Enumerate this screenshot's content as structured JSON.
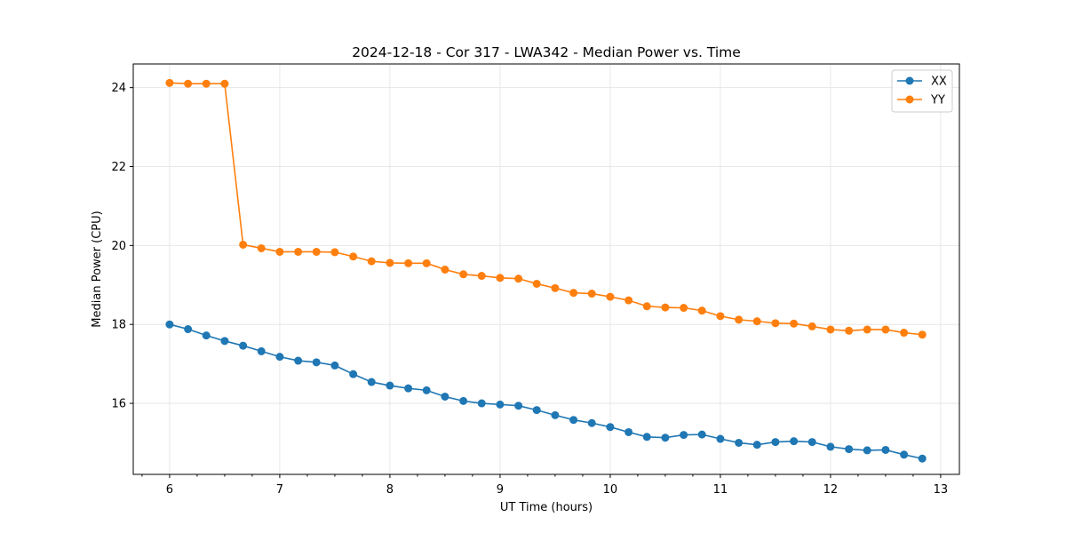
{
  "chart_data": {
    "type": "line",
    "title": "2024-12-18 - Cor 317 - LWA342 - Median Power vs. Time",
    "xlabel": "UT Time (hours)",
    "ylabel": "Median Power (CPU)",
    "xlim": [
      5.67,
      13.17
    ],
    "ylim": [
      14.2,
      24.6
    ],
    "xticks": [
      6,
      7,
      8,
      9,
      10,
      11,
      12,
      13
    ],
    "yticks": [
      16,
      18,
      20,
      22,
      24
    ],
    "grid": true,
    "legend_position": "top-right",
    "x": [
      6.0,
      6.167,
      6.333,
      6.5,
      6.667,
      6.833,
      7.0,
      7.167,
      7.333,
      7.5,
      7.667,
      7.833,
      8.0,
      8.167,
      8.333,
      8.5,
      8.667,
      8.833,
      9.0,
      9.167,
      9.333,
      9.5,
      9.667,
      9.833,
      10.0,
      10.167,
      10.333,
      10.5,
      10.667,
      10.833,
      11.0,
      11.167,
      11.333,
      11.5,
      11.667,
      11.833,
      12.0,
      12.167,
      12.333,
      12.5,
      12.667,
      12.833
    ],
    "series": [
      {
        "name": "XX",
        "color": "#1f77b4",
        "values": [
          18.0,
          17.88,
          17.72,
          17.58,
          17.46,
          17.32,
          17.18,
          17.08,
          17.04,
          16.96,
          16.74,
          16.54,
          16.45,
          16.38,
          16.33,
          16.17,
          16.06,
          16.0,
          15.97,
          15.94,
          15.83,
          15.7,
          15.58,
          15.5,
          15.4,
          15.27,
          15.15,
          15.13,
          15.2,
          15.21,
          15.1,
          15.0,
          14.95,
          15.02,
          15.04,
          15.02,
          14.9,
          14.84,
          14.81,
          14.82,
          14.7,
          14.6
        ]
      },
      {
        "name": "YY",
        "color": "#ff7f0e",
        "values": [
          24.12,
          24.1,
          24.1,
          24.1,
          20.02,
          19.93,
          19.84,
          19.84,
          19.84,
          19.83,
          19.72,
          19.6,
          19.56,
          19.55,
          19.55,
          19.39,
          19.27,
          19.23,
          19.18,
          19.16,
          19.03,
          18.92,
          18.8,
          18.78,
          18.7,
          18.61,
          18.46,
          18.43,
          18.42,
          18.35,
          18.21,
          18.12,
          18.08,
          18.03,
          18.02,
          17.95,
          17.87,
          17.84,
          17.87,
          17.87,
          17.79,
          17.74
        ]
      }
    ]
  }
}
